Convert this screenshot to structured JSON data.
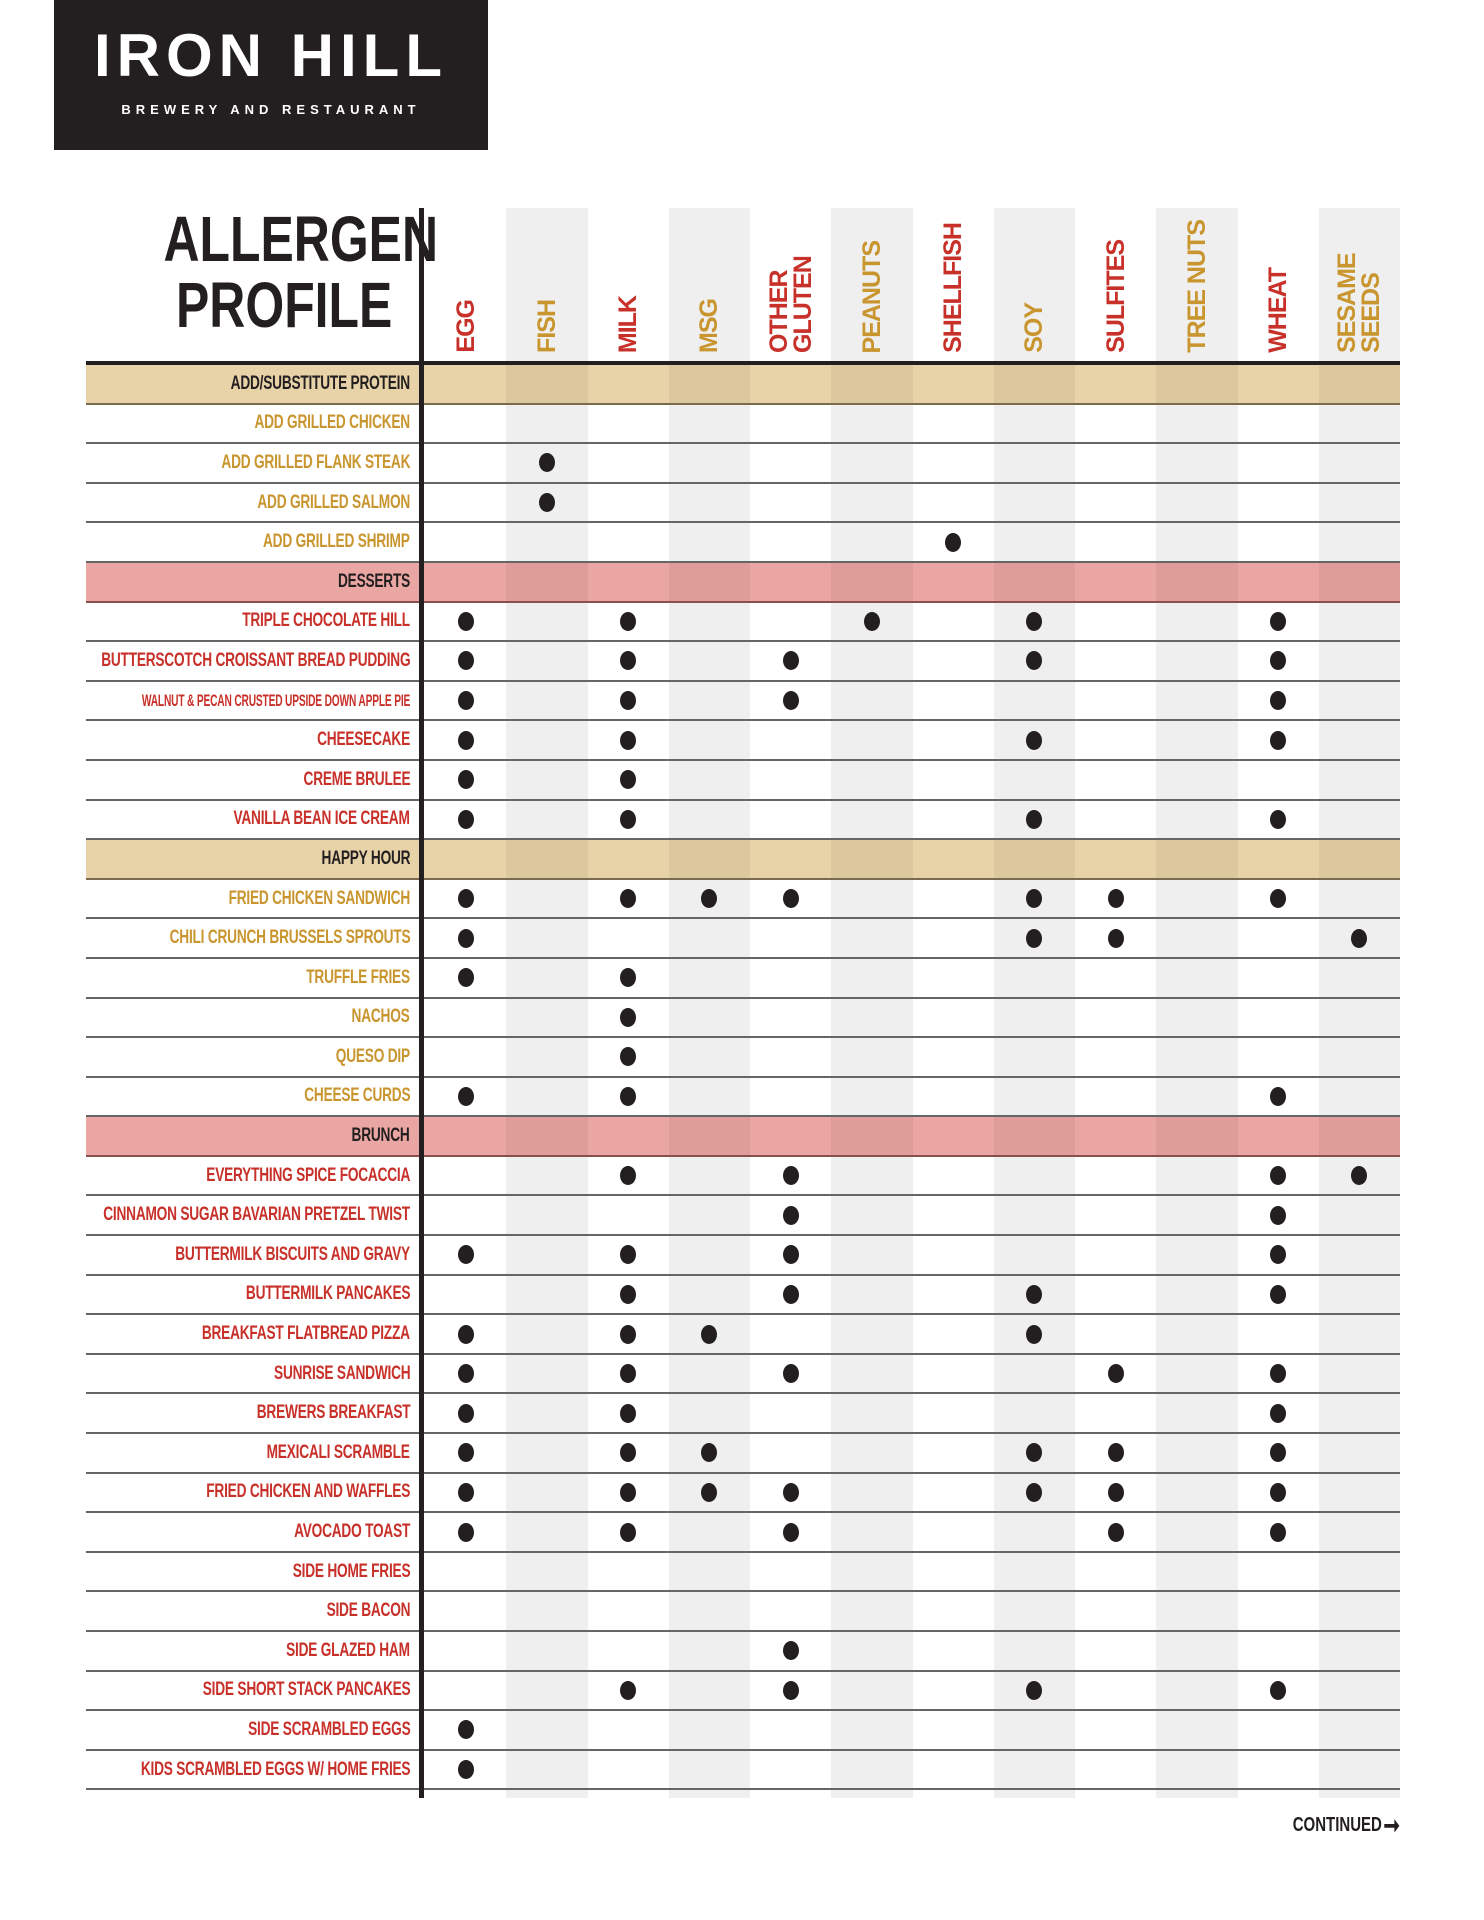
{
  "logo": {
    "name": "IRON HILL",
    "sub": "BREWERY AND RESTAURANT"
  },
  "title": {
    "line1": "ALLERGEN",
    "line2": "PROFILE"
  },
  "colors": {
    "red": "#c8302a",
    "gold": "#c9952e",
    "tan": "#e8d3a8",
    "pink": "#eaa6a2",
    "dot": "#231f20"
  },
  "allergens": [
    "EGG",
    "FISH",
    "MILK",
    "MSG",
    "OTHER GLUTEN",
    "PEANUTS",
    "SHELLFISH",
    "SOY",
    "SULFITES",
    "TREE NUTS",
    "WHEAT",
    "SESAME SEEDS"
  ],
  "sections": [
    {
      "title": "ADD/SUBSTITUTE PROTEIN",
      "style": "tan",
      "item_color": "gold",
      "items": [
        {
          "name": "ADD GRILLED CHICKEN",
          "allergens": []
        },
        {
          "name": "ADD GRILLED FLANK STEAK",
          "allergens": [
            "FISH"
          ]
        },
        {
          "name": "ADD GRILLED SALMON",
          "allergens": [
            "FISH"
          ]
        },
        {
          "name": "ADD GRILLED SHRIMP",
          "allergens": [
            "SHELLFISH"
          ]
        }
      ]
    },
    {
      "title": "DESSERTS",
      "style": "pink",
      "item_color": "red",
      "items": [
        {
          "name": "TRIPLE CHOCOLATE HILL",
          "allergens": [
            "EGG",
            "MILK",
            "PEANUTS",
            "SOY",
            "WHEAT"
          ]
        },
        {
          "name": "BUTTERSCOTCH CROISSANT BREAD PUDDING",
          "allergens": [
            "EGG",
            "MILK",
            "OTHER GLUTEN",
            "SOY",
            "WHEAT"
          ]
        },
        {
          "name": "WALNUT & PECAN CRUSTED UPSIDE DOWN APPLE PIE",
          "allergens": [
            "EGG",
            "MILK",
            "OTHER GLUTEN",
            "WHEAT"
          ]
        },
        {
          "name": "CHEESECAKE",
          "allergens": [
            "EGG",
            "MILK",
            "SOY",
            "WHEAT"
          ]
        },
        {
          "name": "CREME BRULEE",
          "allergens": [
            "EGG",
            "MILK"
          ]
        },
        {
          "name": "VANILLA BEAN ICE CREAM",
          "allergens": [
            "EGG",
            "MILK",
            "SOY",
            "WHEAT"
          ]
        }
      ]
    },
    {
      "title": "HAPPY HOUR",
      "style": "tan",
      "item_color": "gold",
      "items": [
        {
          "name": "FRIED CHICKEN SANDWICH",
          "allergens": [
            "EGG",
            "MILK",
            "MSG",
            "OTHER GLUTEN",
            "SOY",
            "SULFITES",
            "WHEAT"
          ]
        },
        {
          "name": "CHILI CRUNCH BRUSSELS SPROUTS",
          "allergens": [
            "EGG",
            "SOY",
            "SULFITES",
            "SESAME SEEDS"
          ]
        },
        {
          "name": "TRUFFLE FRIES",
          "allergens": [
            "EGG",
            "MILK"
          ]
        },
        {
          "name": "NACHOS",
          "allergens": [
            "MILK"
          ]
        },
        {
          "name": "QUESO DIP",
          "allergens": [
            "MILK"
          ]
        },
        {
          "name": "CHEESE CURDS",
          "allergens": [
            "EGG",
            "MILK",
            "WHEAT"
          ]
        }
      ]
    },
    {
      "title": "BRUNCH",
      "style": "pink",
      "item_color": "red",
      "items": [
        {
          "name": "EVERYTHING SPICE FOCACCIA",
          "allergens": [
            "MILK",
            "OTHER GLUTEN",
            "WHEAT",
            "SESAME SEEDS"
          ]
        },
        {
          "name": "CINNAMON SUGAR BAVARIAN PRETZEL TWIST",
          "allergens": [
            "OTHER GLUTEN",
            "WHEAT"
          ]
        },
        {
          "name": "BUTTERMILK BISCUITS AND GRAVY",
          "allergens": [
            "EGG",
            "MILK",
            "OTHER GLUTEN",
            "WHEAT"
          ]
        },
        {
          "name": "BUTTERMILK PANCAKES",
          "allergens": [
            "MILK",
            "OTHER GLUTEN",
            "SOY",
            "WHEAT"
          ]
        },
        {
          "name": "BREAKFAST FLATBREAD PIZZA",
          "allergens": [
            "EGG",
            "MILK",
            "MSG",
            "SOY"
          ]
        },
        {
          "name": "SUNRISE SANDWICH",
          "allergens": [
            "EGG",
            "MILK",
            "OTHER GLUTEN",
            "SULFITES",
            "WHEAT"
          ]
        },
        {
          "name": "BREWERS BREAKFAST",
          "allergens": [
            "EGG",
            "MILK",
            "WHEAT"
          ]
        },
        {
          "name": "MEXICALI SCRAMBLE",
          "allergens": [
            "EGG",
            "MILK",
            "MSG",
            "SOY",
            "SULFITES",
            "WHEAT"
          ]
        },
        {
          "name": "FRIED CHICKEN AND WAFFLES",
          "allergens": [
            "EGG",
            "MILK",
            "MSG",
            "OTHER GLUTEN",
            "SOY",
            "SULFITES",
            "WHEAT"
          ]
        },
        {
          "name": "AVOCADO TOAST",
          "allergens": [
            "EGG",
            "MILK",
            "OTHER GLUTEN",
            "SULFITES",
            "WHEAT"
          ]
        },
        {
          "name": "SIDE HOME FRIES",
          "allergens": []
        },
        {
          "name": "SIDE BACON",
          "allergens": []
        },
        {
          "name": "SIDE GLAZED HAM",
          "allergens": [
            "OTHER GLUTEN"
          ]
        },
        {
          "name": "SIDE SHORT STACK PANCAKES",
          "allergens": [
            "MILK",
            "OTHER GLUTEN",
            "SOY",
            "WHEAT"
          ]
        },
        {
          "name": "SIDE SCRAMBLED EGGS",
          "allergens": [
            "EGG"
          ]
        },
        {
          "name": "KIDS SCRAMBLED EGGS W/ HOME FRIES",
          "allergens": [
            "EGG"
          ]
        }
      ]
    }
  ],
  "footer": {
    "continued": "CONTINUED",
    "arrow_icon": "arrow-right-icon"
  }
}
